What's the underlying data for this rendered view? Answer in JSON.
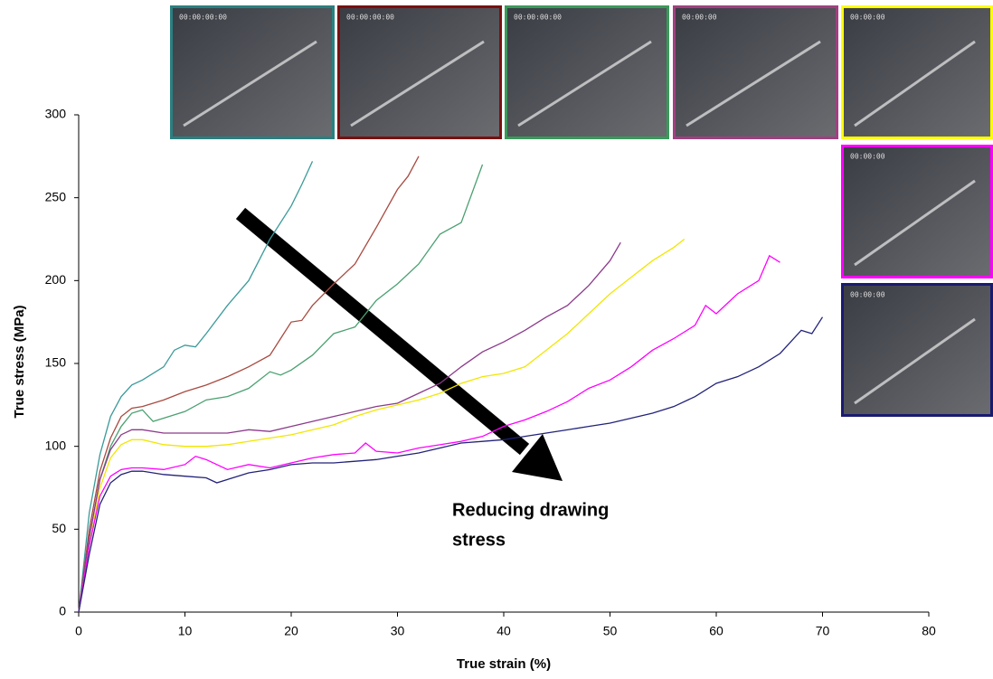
{
  "chart_data": {
    "type": "line",
    "y_label": "True stress (MPa)",
    "x_label": "True strain (%)",
    "annotation": [
      "Reducing drawing",
      "stress"
    ],
    "xlim": [
      0,
      80
    ],
    "xticks": [
      0,
      10,
      20,
      30,
      40,
      50,
      60,
      70,
      80
    ],
    "ylim": [
      0,
      300
    ],
    "yticks": [
      0,
      50,
      100,
      150,
      200,
      250,
      300
    ],
    "grid": false,
    "series": [
      {
        "color": "#3a9a9a",
        "x": [
          0,
          1,
          2,
          3,
          4,
          5,
          6,
          8,
          9,
          10,
          11,
          12,
          14,
          16,
          18,
          20,
          21,
          22
        ],
        "values": [
          0,
          60,
          95,
          118,
          130,
          137,
          140,
          148,
          158,
          161,
          160,
          168,
          185,
          200,
          225,
          245,
          258,
          272
        ]
      },
      {
        "color": "#a84a40",
        "x": [
          0,
          1,
          2,
          3,
          4,
          5,
          6,
          8,
          10,
          12,
          14,
          16,
          18,
          19,
          20,
          21,
          22,
          24,
          26,
          28,
          30,
          31,
          32
        ],
        "values": [
          0,
          50,
          85,
          105,
          118,
          123,
          124,
          128,
          133,
          137,
          142,
          148,
          155,
          165,
          175,
          176,
          185,
          198,
          210,
          232,
          255,
          263,
          275
        ]
      },
      {
        "color": "#4aa070",
        "x": [
          0,
          1,
          2,
          3,
          4,
          5,
          6,
          7,
          8,
          10,
          12,
          14,
          16,
          18,
          19,
          20,
          22,
          24,
          25,
          26,
          28,
          30,
          32,
          34,
          36,
          38
        ],
        "values": [
          0,
          45,
          80,
          100,
          112,
          120,
          122,
          115,
          117,
          121,
          128,
          130,
          135,
          145,
          143,
          146,
          155,
          168,
          170,
          172,
          188,
          198,
          210,
          228,
          235,
          270
        ]
      },
      {
        "color": "#8b3a8b",
        "x": [
          0,
          1,
          2,
          3,
          4,
          5,
          6,
          8,
          10,
          12,
          14,
          16,
          18,
          20,
          22,
          24,
          26,
          28,
          30,
          32,
          34,
          36,
          38,
          40,
          42,
          44,
          46,
          48,
          50,
          51
        ],
        "values": [
          0,
          45,
          80,
          98,
          107,
          110,
          110,
          108,
          108,
          108,
          108,
          110,
          109,
          112,
          115,
          118,
          121,
          124,
          126,
          132,
          138,
          148,
          157,
          163,
          170,
          178,
          185,
          197,
          212,
          223
        ]
      },
      {
        "color": "#f2e600",
        "x": [
          0,
          1,
          2,
          3,
          4,
          5,
          6,
          8,
          10,
          12,
          14,
          16,
          18,
          20,
          22,
          24,
          26,
          28,
          30,
          32,
          34,
          36,
          38,
          40,
          42,
          44,
          46,
          48,
          50,
          52,
          54,
          56,
          57
        ],
        "values": [
          0,
          40,
          75,
          93,
          101,
          104,
          104,
          101,
          100,
          100,
          101,
          103,
          105,
          107,
          110,
          113,
          118,
          122,
          125,
          128,
          132,
          138,
          142,
          144,
          148,
          158,
          168,
          180,
          192,
          202,
          212,
          220,
          225
        ]
      },
      {
        "color": "#ff00ff",
        "x": [
          0,
          1,
          2,
          3,
          4,
          5,
          6,
          8,
          10,
          11,
          12,
          14,
          16,
          18,
          20,
          22,
          24,
          26,
          27,
          28,
          30,
          32,
          34,
          36,
          38,
          40,
          42,
          44,
          46,
          48,
          50,
          52,
          54,
          56,
          58,
          59,
          60,
          62,
          64,
          65,
          66
        ],
        "values": [
          0,
          40,
          70,
          82,
          86,
          87,
          87,
          86,
          89,
          94,
          92,
          86,
          89,
          87,
          90,
          93,
          95,
          96,
          102,
          97,
          96,
          99,
          101,
          103,
          106,
          112,
          116,
          121,
          127,
          135,
          140,
          148,
          158,
          165,
          173,
          185,
          180,
          192,
          200,
          215,
          211
        ]
      },
      {
        "color": "#22227a",
        "x": [
          0,
          1,
          2,
          3,
          4,
          5,
          6,
          8,
          10,
          12,
          13,
          14,
          16,
          18,
          20,
          22,
          24,
          26,
          28,
          30,
          32,
          34,
          36,
          38,
          40,
          42,
          44,
          46,
          48,
          50,
          52,
          54,
          56,
          58,
          60,
          62,
          64,
          66,
          68,
          69,
          70
        ],
        "values": [
          0,
          35,
          65,
          78,
          83,
          85,
          85,
          83,
          82,
          81,
          78,
          80,
          84,
          86,
          89,
          90,
          90,
          91,
          92,
          94,
          96,
          99,
          102,
          103,
          104,
          106,
          108,
          110,
          112,
          114,
          117,
          120,
          124,
          130,
          138,
          142,
          148,
          156,
          170,
          168,
          178
        ]
      }
    ]
  },
  "frames": [
    {
      "timestamp": "00:00:00:00",
      "border": "#2a8080"
    },
    {
      "timestamp": "00:00:00:00",
      "border": "#7a1010"
    },
    {
      "timestamp": "00:00:00:00",
      "border": "#3a9a5a"
    },
    {
      "timestamp": "00:00:00",
      "border": "#a04080"
    },
    {
      "timestamp": "00:00:00",
      "border": "#ffff00"
    },
    {
      "timestamp": "00:00:00",
      "border": "#ff00ff"
    },
    {
      "timestamp": "00:00:00",
      "border": "#1a1a70"
    }
  ]
}
